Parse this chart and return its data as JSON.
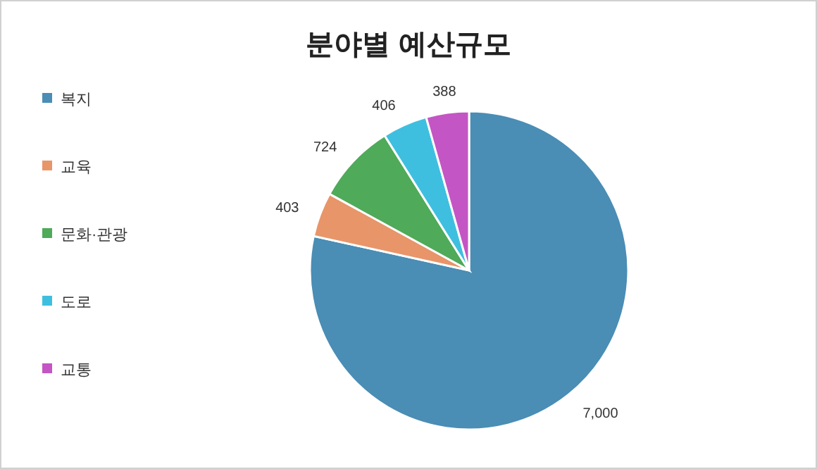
{
  "chart_data": {
    "type": "pie",
    "title": "분야별 예산규모",
    "categories": [
      "복지",
      "교육",
      "문화·관광",
      "도로",
      "교통"
    ],
    "values": [
      7000,
      403,
      724,
      406,
      388
    ],
    "colors": [
      "#4a8db5",
      "#e8956a",
      "#4faa5a",
      "#3fbfe0",
      "#c455c4"
    ],
    "value_labels": [
      "7,000",
      "403",
      "724",
      "406",
      "388"
    ],
    "legend": "left"
  }
}
